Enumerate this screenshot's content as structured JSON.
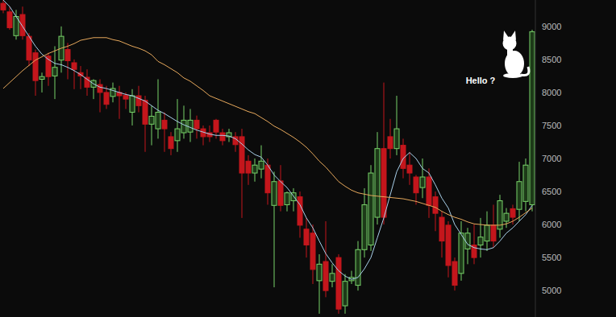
{
  "chart_data": {
    "type": "candlestick",
    "ylim": [
      4600,
      9400
    ],
    "yticks": [
      5000,
      5500,
      6000,
      6500,
      7000,
      7500,
      8000,
      8500,
      9000
    ],
    "grid": false,
    "tick_labels": "y",
    "open": [
      9350,
      9220,
      8860,
      9180,
      8850,
      8600,
      8200,
      8550,
      8250,
      8490,
      8650,
      8450,
      8300,
      8230,
      8080,
      8120,
      8000,
      7940,
      8000,
      7960,
      7700,
      7950,
      7880,
      7520,
      7450,
      7580,
      7330,
      7270,
      7390,
      7400,
      7580,
      7450,
      7390,
      7580,
      7390,
      7330,
      7330,
      7330,
      6960,
      6780,
      6840,
      6900,
      6290,
      6660,
      6300,
      6360,
      6420,
      5930,
      5870,
      5150,
      5440,
      5140,
      5500,
      4770,
      5150,
      5080,
      5620,
      5690,
      6110,
      7150,
      7330,
      7150,
      7200,
      6900,
      6720,
      6560,
      6720,
      6420,
      6110,
      5990,
      5440,
      5260,
      5630,
      5690,
      5690,
      5750,
      5990,
      5930,
      6050,
      6240,
      6230,
      6350,
      6300
    ],
    "high": [
      9400,
      9300,
      9250,
      9300,
      8900,
      8650,
      8300,
      8600,
      8700,
      9000,
      8750,
      8500,
      8400,
      8350,
      8200,
      8200,
      8100,
      8150,
      8100,
      8000,
      8050,
      8100,
      7950,
      7800,
      8200,
      7700,
      7400,
      7900,
      7800,
      7750,
      7650,
      7500,
      7500,
      7600,
      7450,
      7450,
      7400,
      7450,
      7050,
      7000,
      7200,
      7000,
      6800,
      6900,
      6500,
      6550,
      6500,
      6100,
      6000,
      5550,
      6050,
      5400,
      5550,
      5250,
      5300,
      5750,
      6550,
      6900,
      7400,
      8150,
      7600,
      7950,
      7300,
      7100,
      6750,
      7000,
      6850,
      6500,
      6200,
      6050,
      5500,
      6050,
      5950,
      6000,
      6100,
      6200,
      6300,
      6450,
      6250,
      6300,
      6950,
      7000,
      8950
    ],
    "low": [
      9200,
      8950,
      8800,
      8800,
      8400,
      7950,
      8000,
      8100,
      7900,
      8300,
      8200,
      8050,
      8050,
      7950,
      7900,
      7700,
      7750,
      7850,
      7600,
      7750,
      7500,
      7700,
      7100,
      7200,
      7300,
      7100,
      7050,
      7100,
      7300,
      7250,
      7300,
      7200,
      7250,
      7300,
      7200,
      7250,
      7100,
      6100,
      6600,
      6650,
      6700,
      6300,
      5050,
      6200,
      6200,
      6200,
      5800,
      5500,
      5100,
      4650,
      4900,
      5050,
      4650,
      4650,
      5100,
      5000,
      5500,
      5600,
      6000,
      6000,
      7000,
      7050,
      6700,
      6600,
      6300,
      6400,
      6100,
      5900,
      5500,
      5200,
      5000,
      5150,
      5400,
      5400,
      5500,
      5600,
      5650,
      5800,
      5950,
      6000,
      6050,
      6200,
      6200
    ],
    "close": [
      9250,
      8980,
      9150,
      8860,
      8490,
      8180,
      8240,
      8240,
      8380,
      8850,
      8480,
      8350,
      8250,
      8080,
      8180,
      8000,
      7820,
      8060,
      7950,
      7900,
      7950,
      7800,
      7520,
      7640,
      7700,
      7450,
      7150,
      7450,
      7580,
      7580,
      7450,
      7330,
      7330,
      7400,
      7270,
      7390,
      7210,
      6780,
      6780,
      6900,
      6960,
      6480,
      6650,
      6290,
      6480,
      6480,
      5990,
      5690,
      5320,
      5400,
      5000,
      5260,
      4720,
      5140,
      5200,
      5620,
      6300,
      6780,
      7150,
      6110,
      7150,
      7450,
      6850,
      6780,
      6480,
      6720,
      6290,
      6170,
      5750,
      5380,
      5080,
      5870,
      5870,
      5500,
      5810,
      5990,
      5750,
      6360,
      6170,
      6110,
      6650,
      6900,
      8920
    ],
    "series": [
      {
        "type": "line",
        "color": "#a9d0ea",
        "values": [
          9400,
          9300,
          9150,
          9000,
          8850,
          8700,
          8580,
          8500,
          8440,
          8420,
          8380,
          8330,
          8270,
          8200,
          8130,
          8080,
          8060,
          8030,
          8000,
          7970,
          7950,
          7910,
          7870,
          7800,
          7730,
          7680,
          7620,
          7560,
          7510,
          7470,
          7430,
          7400,
          7370,
          7350,
          7350,
          7340,
          7300,
          7220,
          7130,
          7060,
          7020,
          6900,
          6750,
          6650,
          6560,
          6430,
          6300,
          6100,
          5950,
          5750,
          5560,
          5420,
          5300,
          5220,
          5170,
          5200,
          5330,
          5500,
          5800,
          6100,
          6450,
          6800,
          7000,
          7090,
          7000,
          6850,
          6780,
          6600,
          6400,
          6250,
          6000,
          5850,
          5700,
          5650,
          5630,
          5620,
          5650,
          5750,
          5870,
          5950,
          6050,
          6150,
          6290
        ]
      },
      {
        "type": "line",
        "color": "#e6a85c",
        "values": [
          8060,
          8150,
          8240,
          8330,
          8410,
          8490,
          8540,
          8590,
          8630,
          8670,
          8700,
          8740,
          8790,
          8810,
          8830,
          8830,
          8830,
          8800,
          8780,
          8740,
          8700,
          8670,
          8630,
          8570,
          8470,
          8420,
          8360,
          8300,
          8220,
          8170,
          8100,
          8030,
          7950,
          7910,
          7870,
          7830,
          7790,
          7750,
          7710,
          7680,
          7620,
          7560,
          7490,
          7440,
          7380,
          7320,
          7250,
          7170,
          7070,
          6960,
          6870,
          6760,
          6650,
          6580,
          6520,
          6480,
          6460,
          6440,
          6430,
          6420,
          6410,
          6400,
          6390,
          6370,
          6350,
          6320,
          6290,
          6260,
          6200,
          6150,
          6110,
          6080,
          6040,
          6010,
          6000,
          5990,
          5990,
          5990,
          6010,
          6050,
          6110,
          6180,
          6250
        ]
      }
    ],
    "annotations": [
      {
        "text": "Hello ?",
        "x": 74,
        "y": 8170
      }
    ]
  }
}
